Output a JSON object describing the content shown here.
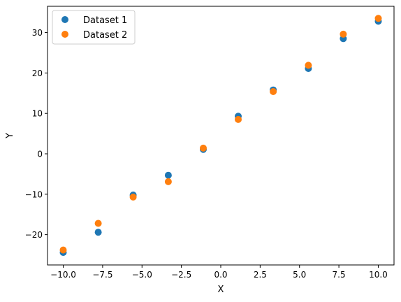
{
  "chart_data": {
    "type": "scatter",
    "xlabel": "X",
    "ylabel": "Y",
    "xlim": [
      -11.0,
      11.0
    ],
    "ylim": [
      -27.5,
      36.5
    ],
    "xticks": [
      -10.0,
      -7.5,
      -5.0,
      -2.5,
      0.0,
      2.5,
      5.0,
      7.5,
      10.0
    ],
    "xtick_labels": [
      "−10.0",
      "−7.5",
      "−5.0",
      "−2.5",
      "0.0",
      "2.5",
      "5.0",
      "7.5",
      "10.0"
    ],
    "yticks": [
      -20,
      -10,
      0,
      10,
      20,
      30
    ],
    "ytick_labels": [
      "−20",
      "−10",
      "0",
      "10",
      "20",
      "30"
    ],
    "grid": false,
    "legend_position": "top-left",
    "series": [
      {
        "name": "Dataset 1",
        "color": "#1f77b4",
        "x": [
          -10.0,
          -7.78,
          -5.56,
          -3.33,
          -1.11,
          1.11,
          3.33,
          5.56,
          7.78,
          10.0
        ],
        "y": [
          -24.4,
          -19.4,
          -10.2,
          -5.3,
          1.1,
          9.3,
          15.8,
          21.1,
          28.5,
          32.8
        ]
      },
      {
        "name": "Dataset 2",
        "color": "#ff7f0e",
        "x": [
          -10.0,
          -7.78,
          -5.56,
          -3.33,
          -1.11,
          1.11,
          3.33,
          5.56,
          7.78,
          10.0
        ],
        "y": [
          -23.8,
          -17.2,
          -10.7,
          -6.9,
          1.4,
          8.5,
          15.4,
          21.9,
          29.6,
          33.5
        ]
      }
    ]
  }
}
